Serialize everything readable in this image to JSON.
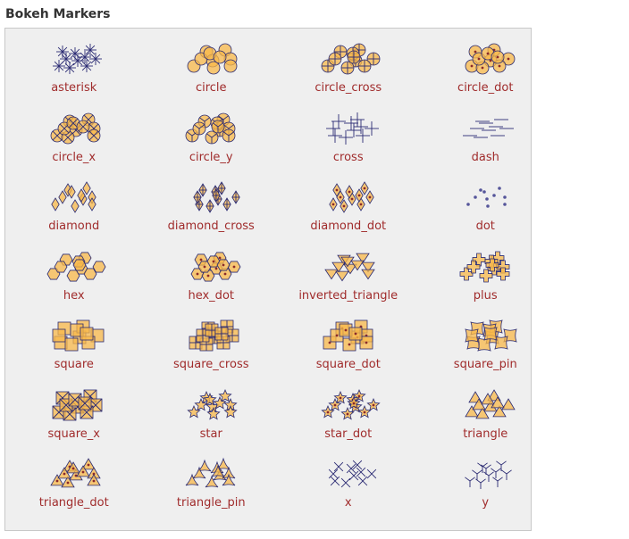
{
  "title": "Bokeh Markers",
  "colors": {
    "fill": "#f8b84a",
    "stroke": "#2b2b73",
    "dot": "#8a2a2a",
    "label": "#a02c2c"
  },
  "markers": [
    "asterisk",
    "circle",
    "circle_cross",
    "circle_dot",
    "circle_x",
    "circle_y",
    "cross",
    "dash",
    "diamond",
    "diamond_cross",
    "diamond_dot",
    "dot",
    "hex",
    "hex_dot",
    "inverted_triangle",
    "plus",
    "square",
    "square_cross",
    "square_dot",
    "square_pin",
    "square_x",
    "star",
    "star_dot",
    "triangle",
    "triangle_dot",
    "triangle_pin",
    "x",
    "y"
  ]
}
